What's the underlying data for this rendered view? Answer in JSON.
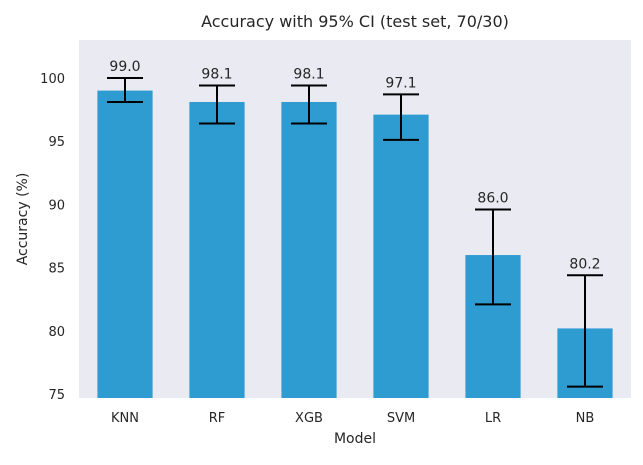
{
  "chart_data": {
    "type": "bar",
    "title": "Accuracy with 95% CI (test set, 70/30)",
    "xlabel": "Model",
    "ylabel": "Accuracy (%)",
    "categories": [
      "KNN",
      "RF",
      "XGB",
      "SVM",
      "LR",
      "NB"
    ],
    "values": [
      99.0,
      98.1,
      98.1,
      97.1,
      86.0,
      80.2
    ],
    "value_labels": [
      "99.0",
      "98.1",
      "98.1",
      "97.1",
      "86.0",
      "80.2"
    ],
    "ci_lower": [
      98.1,
      96.4,
      96.4,
      95.1,
      82.1,
      75.6
    ],
    "ci_upper": [
      100.0,
      99.4,
      99.4,
      98.7,
      89.6,
      84.4
    ],
    "ylim": [
      74.7,
      103.0
    ],
    "yticks": [
      75,
      80,
      85,
      90,
      95,
      100
    ],
    "grid": false,
    "background": "#eaeaf2",
    "bar_color": "#2e9bd1",
    "errorbar_color": "#000000"
  }
}
